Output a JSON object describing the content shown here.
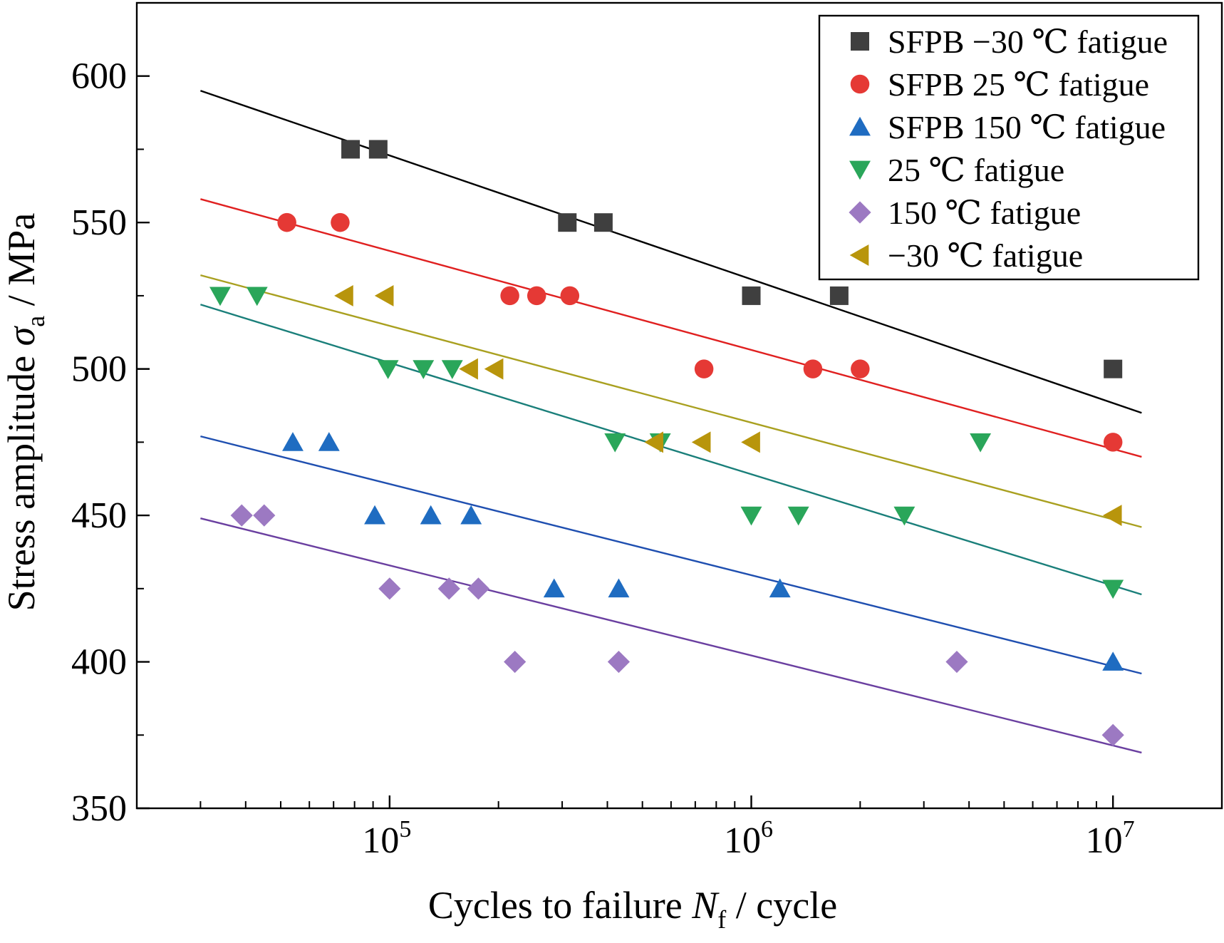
{
  "chart_data": {
    "type": "scatter",
    "xscale": "log",
    "xlim": [
      20000,
      20000000
    ],
    "ylim": [
      350,
      625
    ],
    "xlabel": {
      "main": "Cycles to failure ",
      "var": "N",
      "sub": "f",
      "tail": " / cycle"
    },
    "ylabel": {
      "main": "Stress amplitude ",
      "var": "σ",
      "sub": "a",
      "tail": " / MPa"
    },
    "yticks": [
      350,
      400,
      450,
      500,
      550,
      600
    ],
    "ytick_labels": [
      "350",
      "400",
      "450",
      "500",
      "550",
      "600"
    ],
    "xticks_major": [
      100000,
      1000000,
      10000000
    ],
    "xtick_labels": [
      {
        "base": "10",
        "exp": "5"
      },
      {
        "base": "10",
        "exp": "6"
      },
      {
        "base": "10",
        "exp": "7"
      }
    ],
    "legend_position": "top-right",
    "series": [
      {
        "name": "SFPB −30 ℃ fatigue",
        "marker": "square",
        "color": "#3f3f3f",
        "line_color": "#000000",
        "fit": {
          "x": [
            30000,
            12000000
          ],
          "y": [
            595,
            485
          ]
        },
        "points": [
          [
            78000,
            575
          ],
          [
            93000,
            575
          ],
          [
            310000,
            550
          ],
          [
            390000,
            550
          ],
          [
            1000000,
            525
          ],
          [
            1750000,
            525
          ],
          [
            10000000,
            500
          ]
        ]
      },
      {
        "name": "SFPB 25 ℃ fatigue",
        "marker": "circle",
        "color": "#e53935",
        "line_color": "#e02020",
        "fit": {
          "x": [
            30000,
            12000000
          ],
          "y": [
            558,
            470
          ]
        },
        "points": [
          [
            52000,
            550
          ],
          [
            73000,
            550
          ],
          [
            215000,
            525
          ],
          [
            255000,
            525
          ],
          [
            315000,
            525
          ],
          [
            740000,
            500
          ],
          [
            1480000,
            500
          ],
          [
            2000000,
            500
          ],
          [
            10000000,
            475
          ]
        ]
      },
      {
        "name": "SFPB 150 ℃ fatigue",
        "marker": "triangle-up",
        "color": "#1f6cc1",
        "line_color": "#1f4fb0",
        "fit": {
          "x": [
            30000,
            12000000
          ],
          "y": [
            477,
            396
          ]
        },
        "points": [
          [
            54000,
            475
          ],
          [
            68000,
            475
          ],
          [
            91000,
            450
          ],
          [
            130000,
            450
          ],
          [
            168000,
            450
          ],
          [
            285000,
            425
          ],
          [
            430000,
            425
          ],
          [
            1200000,
            425
          ],
          [
            10000000,
            400
          ]
        ]
      },
      {
        "name": "25 ℃ fatigue",
        "marker": "triangle-down",
        "color": "#2aa65a",
        "line_color": "#1a7f7a",
        "fit": {
          "x": [
            30000,
            12000000
          ],
          "y": [
            522,
            423
          ]
        },
        "points": [
          [
            34000,
            525
          ],
          [
            43000,
            525
          ],
          [
            99000,
            500
          ],
          [
            124000,
            500
          ],
          [
            149000,
            500
          ],
          [
            420000,
            475
          ],
          [
            560000,
            475
          ],
          [
            1000000,
            450
          ],
          [
            1350000,
            450
          ],
          [
            2650000,
            450
          ],
          [
            4300000,
            475
          ],
          [
            10000000,
            425
          ]
        ]
      },
      {
        "name": "150 ℃ fatigue",
        "marker": "diamond",
        "color": "#9c79c2",
        "line_color": "#6a3fa0",
        "fit": {
          "x": [
            30000,
            12000000
          ],
          "y": [
            449,
            369
          ]
        },
        "points": [
          [
            39000,
            450
          ],
          [
            45000,
            450
          ],
          [
            100000,
            425
          ],
          [
            146000,
            425
          ],
          [
            176000,
            425
          ],
          [
            222000,
            400
          ],
          [
            430000,
            400
          ],
          [
            3700000,
            400
          ],
          [
            10000000,
            375
          ]
        ]
      },
      {
        "name": "−30 ℃ fatigue",
        "marker": "triangle-left",
        "color": "#b8950c",
        "line_color": "#a9a020",
        "fit": {
          "x": [
            30000,
            12000000
          ],
          "y": [
            532,
            446
          ]
        },
        "points": [
          [
            75000,
            525
          ],
          [
            97000,
            525
          ],
          [
            166000,
            500
          ],
          [
            195000,
            500
          ],
          [
            540000,
            475
          ],
          [
            730000,
            475
          ],
          [
            1000000,
            475
          ],
          [
            10000000,
            450
          ]
        ]
      }
    ]
  }
}
